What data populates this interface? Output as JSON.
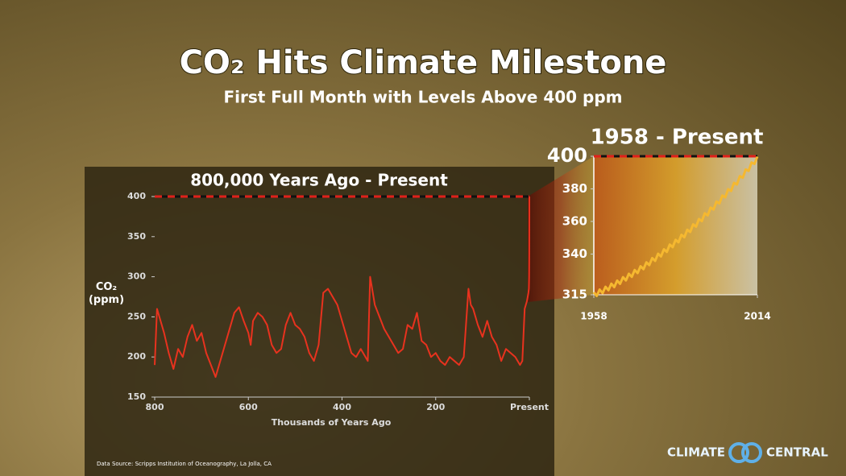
{
  "title": "CO₂ Hits Climate Milestone",
  "subtitle": "First Full Month with Levels Above 400 ppm",
  "source": "Data Source: Scripps Institution of Oceanography, La Jolla, CA",
  "logo": {
    "left": "CLIMATE",
    "right": "CENTRAL"
  },
  "chart_data": [
    {
      "type": "line",
      "title": "800,000 Years Ago - Present",
      "xlabel": "Thousands of Years Ago",
      "ylabel": "CO₂ (ppm)",
      "xlim": [
        800,
        0
      ],
      "ylim": [
        150,
        400
      ],
      "xticks": [
        800,
        600,
        400,
        200,
        {
          "value": 0,
          "label": "Present"
        }
      ],
      "yticks": [
        150,
        200,
        250,
        300,
        350,
        400
      ],
      "reference_line": 400,
      "color": "#e8321e",
      "x": [
        800,
        795,
        790,
        780,
        770,
        760,
        750,
        740,
        730,
        720,
        710,
        700,
        690,
        680,
        670,
        665,
        660,
        650,
        640,
        630,
        620,
        610,
        600,
        595,
        590,
        580,
        570,
        560,
        550,
        540,
        530,
        520,
        510,
        500,
        490,
        480,
        470,
        460,
        450,
        440,
        430,
        420,
        410,
        400,
        390,
        380,
        370,
        360,
        345,
        340,
        330,
        320,
        310,
        300,
        290,
        280,
        270,
        260,
        250,
        240,
        230,
        220,
        210,
        200,
        190,
        180,
        170,
        160,
        150,
        140,
        130,
        125,
        120,
        110,
        100,
        90,
        80,
        70,
        60,
        50,
        40,
        30,
        20,
        15,
        10,
        5,
        2,
        1,
        0.5,
        0.2,
        0.05,
        0
      ],
      "values": [
        190,
        260,
        250,
        230,
        205,
        185,
        210,
        200,
        225,
        240,
        220,
        230,
        205,
        190,
        175,
        185,
        195,
        215,
        235,
        255,
        262,
        245,
        230,
        215,
        245,
        255,
        250,
        240,
        215,
        205,
        210,
        240,
        255,
        240,
        235,
        225,
        205,
        195,
        215,
        280,
        285,
        275,
        265,
        245,
        225,
        205,
        200,
        210,
        195,
        300,
        265,
        250,
        235,
        225,
        215,
        205,
        210,
        240,
        235,
        255,
        220,
        215,
        200,
        205,
        195,
        190,
        200,
        195,
        190,
        200,
        285,
        265,
        260,
        240,
        225,
        245,
        225,
        215,
        195,
        210,
        205,
        200,
        190,
        195,
        260,
        270,
        280,
        285,
        300,
        330,
        370,
        400
      ]
    },
    {
      "type": "line",
      "title": "1958 - Present",
      "xlim": [
        1958,
        2014
      ],
      "ylim": [
        315,
        400
      ],
      "xticks": [
        1958,
        2014
      ],
      "yticks": [
        315,
        340,
        360,
        380,
        400
      ],
      "reference_line": 400,
      "color": "#f5b830",
      "x": [
        1958,
        1959,
        1960,
        1961,
        1962,
        1963,
        1964,
        1965,
        1966,
        1967,
        1968,
        1969,
        1970,
        1971,
        1972,
        1973,
        1974,
        1975,
        1976,
        1977,
        1978,
        1979,
        1980,
        1981,
        1982,
        1983,
        1984,
        1985,
        1986,
        1987,
        1988,
        1989,
        1990,
        1991,
        1992,
        1993,
        1994,
        1995,
        1996,
        1997,
        1998,
        1999,
        2000,
        2001,
        2002,
        2003,
        2004,
        2005,
        2006,
        2007,
        2008,
        2009,
        2010,
        2011,
        2012,
        2013,
        2014
      ],
      "values": [
        316.5,
        314.3,
        318.2,
        316.0,
        319.9,
        317.8,
        321.8,
        319.7,
        323.7,
        321.7,
        325.8,
        323.8,
        327.9,
        326.0,
        330.2,
        328.3,
        332.5,
        330.7,
        334.9,
        333.2,
        337.5,
        335.8,
        340.2,
        338.5,
        342.9,
        341.3,
        345.8,
        344.2,
        348.7,
        347.2,
        351.8,
        350.3,
        354.9,
        353.5,
        358.2,
        356.8,
        361.5,
        360.2,
        365.0,
        363.7,
        368.5,
        367.3,
        372.2,
        371.0,
        375.9,
        374.8,
        379.8,
        378.7,
        383.7,
        382.7,
        387.8,
        386.8,
        391.9,
        391.0,
        396.2,
        395.3,
        399.8
      ]
    }
  ]
}
